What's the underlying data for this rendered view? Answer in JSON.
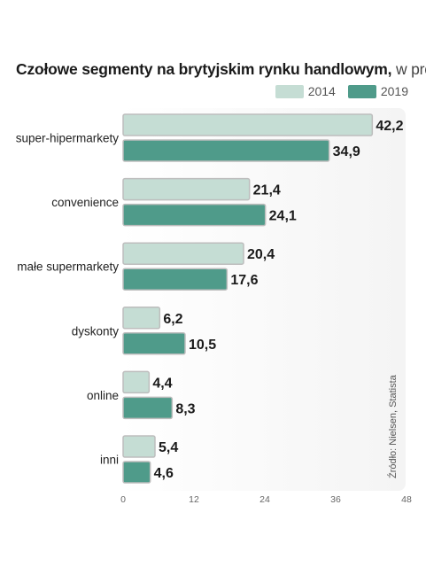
{
  "chart_data": {
    "type": "bar",
    "orientation": "horizontal",
    "title": "Czołowe segmenty na brytyjskim rynku handlowym,",
    "title_unit": "w proc.",
    "categories": [
      "super-hipermarkety",
      "convenience",
      "małe supermarkety",
      "dyskonty",
      "online",
      "inni"
    ],
    "series": [
      {
        "name": "2014",
        "color": "#c5ddd4",
        "values": [
          42.2,
          21.4,
          20.4,
          6.2,
          4.4,
          5.4
        ],
        "labels": [
          "42,2",
          "21,4",
          "20,4",
          "6,2",
          "4,4",
          "5,4"
        ]
      },
      {
        "name": "2019",
        "color": "#4f9b8a",
        "values": [
          34.9,
          24.1,
          17.6,
          10.5,
          8.3,
          4.6
        ],
        "labels": [
          "34,9",
          "24,1",
          "17,6",
          "10,5",
          "8,3",
          "4,6"
        ]
      }
    ],
    "xlim": [
      0,
      48
    ],
    "xticks": [
      0,
      12,
      24,
      36,
      48
    ],
    "legend_position": "top-right",
    "grid": false,
    "source": "Źródło: Nielsen, Statista"
  }
}
